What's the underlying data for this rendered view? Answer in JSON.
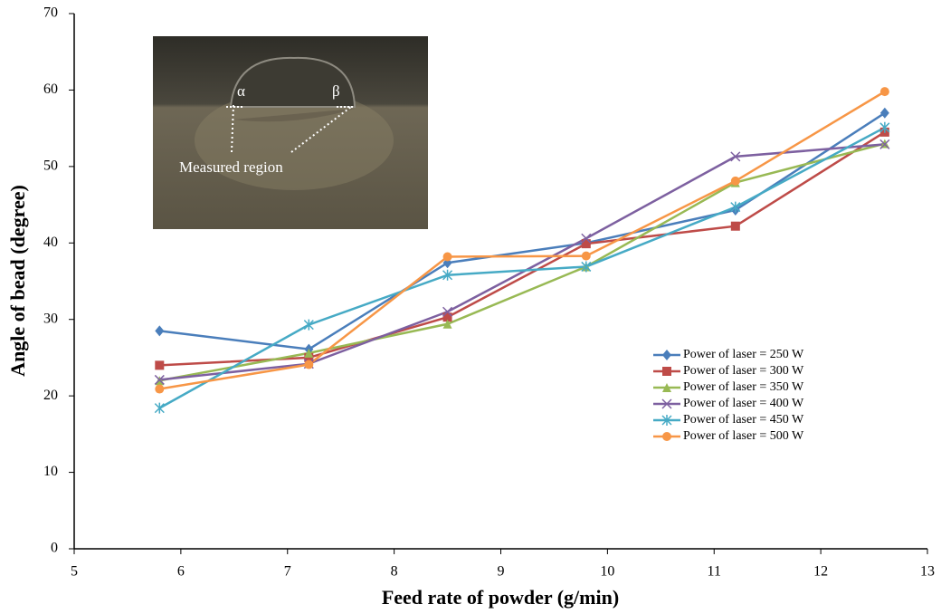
{
  "chart_data": {
    "type": "line",
    "xlabel": "Feed rate of powder (g/min)",
    "ylabel": "Angle of bead (degree)",
    "xlim": [
      5,
      13
    ],
    "xticks": [
      5,
      6,
      7,
      8,
      9,
      10,
      11,
      12,
      13
    ],
    "ylim": [
      0,
      70
    ],
    "yticks": [
      0,
      10,
      20,
      30,
      40,
      50,
      60,
      70
    ],
    "grid": false,
    "legend": "right",
    "x": [
      5.8,
      7.2,
      8.5,
      9.8,
      11.2,
      12.6
    ],
    "series": [
      {
        "name": "Power of laser = 250 W",
        "color": "#4a7ebb",
        "marker": "diamond",
        "values": [
          28.5,
          26.1,
          37.4,
          40.0,
          44.3,
          57.0
        ]
      },
      {
        "name": "Power of laser = 300 W",
        "color": "#be4b48",
        "marker": "square",
        "values": [
          24.0,
          25.0,
          30.3,
          39.9,
          42.2,
          54.5
        ]
      },
      {
        "name": "Power of laser = 350 W",
        "color": "#98b954",
        "marker": "triangle",
        "values": [
          22.0,
          25.6,
          29.4,
          36.9,
          47.9,
          53.0
        ]
      },
      {
        "name": "Power of laser = 400 W",
        "color": "#7d60a0",
        "marker": "x",
        "values": [
          22.1,
          24.2,
          31.0,
          40.6,
          51.3,
          52.9
        ]
      },
      {
        "name": "Power of laser = 450 W",
        "color": "#46aac5",
        "marker": "star",
        "values": [
          18.4,
          29.3,
          35.8,
          36.9,
          44.7,
          55.1
        ]
      },
      {
        "name": "Power of laser = 500 W",
        "color": "#f79646",
        "marker": "circle",
        "values": [
          20.9,
          24.1,
          38.2,
          38.3,
          48.1,
          59.8
        ]
      }
    ],
    "annotations": [
      "α",
      "β",
      "Measured region"
    ]
  }
}
